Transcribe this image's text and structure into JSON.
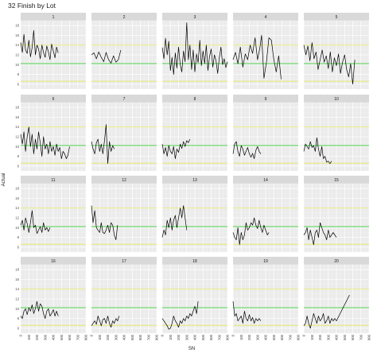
{
  "chart_data": {
    "type": "line",
    "title": "32 Finish by Lot",
    "xlabel": "SN",
    "ylabel": "Actual",
    "grid": true,
    "legend": "none",
    "layout": "facet 4 rows x 5 columns",
    "facets": [
      "1",
      "2",
      "3",
      "4",
      "5",
      "6",
      "7",
      "8",
      "9",
      "10",
      "11",
      "12",
      "13",
      "14",
      "15",
      "16",
      "17",
      "18",
      "19",
      "20"
    ],
    "xlim": [
      0,
      800
    ],
    "ylim": [
      5,
      19
    ],
    "x_ticks": [
      0,
      100,
      200,
      300,
      400,
      500,
      600,
      700,
      800
    ],
    "x_tick_labels": [
      "0",
      "100",
      "200",
      "300",
      "400",
      "500",
      "600",
      "700",
      "800"
    ],
    "y_ticks": [
      6,
      8,
      10,
      12,
      14,
      16,
      18
    ],
    "y_tick_labels": [
      "6",
      "8",
      "10",
      "12",
      "14",
      "16",
      "18"
    ],
    "reference_lines": [
      {
        "y": 14,
        "color": "#e6ea5c"
      },
      {
        "y": 10.2,
        "color": "#33cc33"
      },
      {
        "y": 6.6,
        "color": "#e6ea5c"
      }
    ],
    "line_color": "#000000",
    "series": [
      {
        "x": [
          0,
          20,
          40,
          60,
          80,
          100,
          120,
          140,
          160,
          180,
          200,
          220,
          240,
          260,
          280,
          300,
          320,
          340,
          360,
          380,
          400,
          420,
          440,
          460
        ],
        "values": [
          14.5,
          12.5,
          16.2,
          13.0,
          12.3,
          15.0,
          11.6,
          13.5,
          17.0,
          12.0,
          14.0,
          13.2,
          11.2,
          14.0,
          12.5,
          11.5,
          13.8,
          12.6,
          11.0,
          14.2,
          12.8,
          11.4,
          13.6,
          12.4
        ]
      },
      {
        "x": [
          0,
          30,
          60,
          90,
          120,
          150,
          180,
          210,
          240,
          270,
          300,
          330,
          360
        ],
        "values": [
          12.0,
          12.4,
          11.2,
          12.6,
          11.5,
          10.6,
          12.5,
          11.0,
          10.3,
          11.8,
          10.5,
          11.0,
          13.0
        ]
      },
      {
        "x": [
          0,
          20,
          40,
          60,
          80,
          100,
          120,
          140,
          160,
          180,
          200,
          220,
          240,
          260,
          280,
          300,
          320,
          340,
          360,
          380,
          400,
          420,
          440,
          460,
          480,
          500,
          520,
          540,
          560,
          580,
          600,
          620,
          640,
          660,
          680,
          700,
          720,
          740,
          760,
          780,
          800
        ],
        "values": [
          13.5,
          11.2,
          15.4,
          12.0,
          14.8,
          8.8,
          11.5,
          8.0,
          12.4,
          9.3,
          13.6,
          10.0,
          8.5,
          12.8,
          10.6,
          18.6,
          11.0,
          14.0,
          9.0,
          13.0,
          8.5,
          12.2,
          10.4,
          15.0,
          9.8,
          12.8,
          10.2,
          14.0,
          8.8,
          11.6,
          13.2,
          9.5,
          12.0,
          10.8,
          8.2,
          11.5,
          13.6,
          10.0,
          11.2,
          9.4,
          10.6
        ]
      },
      {
        "x": [
          0,
          30,
          60,
          90,
          120,
          150,
          180,
          210,
          240,
          270,
          300,
          330,
          350,
          380,
          410,
          440,
          470,
          500,
          530,
          560,
          590
        ],
        "values": [
          11.0,
          12.5,
          10.2,
          13.6,
          9.5,
          12.2,
          11.0,
          14.0,
          12.3,
          15.5,
          11.0,
          13.5,
          16.0,
          7.2,
          10.5,
          15.5,
          15.0,
          11.0,
          8.5,
          11.8,
          7.0
        ]
      },
      {
        "x": [
          0,
          25,
          50,
          75,
          100,
          125,
          150,
          175,
          200,
          225,
          250,
          275,
          300,
          325,
          350,
          375,
          400,
          425,
          450,
          475,
          500,
          525,
          550,
          575,
          600,
          625
        ],
        "values": [
          14.0,
          12.0,
          13.8,
          10.8,
          14.5,
          11.2,
          12.6,
          9.0,
          11.0,
          13.0,
          10.5,
          11.8,
          9.2,
          12.6,
          8.5,
          11.4,
          9.8,
          12.2,
          8.2,
          10.5,
          12.0,
          9.0,
          7.5,
          10.2,
          6.0,
          11.0
        ]
      },
      {
        "x": [
          0,
          20,
          40,
          60,
          80,
          100,
          120,
          140,
          160,
          180,
          200,
          220,
          240,
          260,
          280,
          300,
          320,
          340,
          360,
          380,
          400,
          420,
          440,
          460,
          480,
          500,
          520,
          540,
          560,
          580,
          600
        ],
        "values": [
          12.5,
          10.5,
          13.0,
          9.0,
          12.0,
          14.0,
          10.0,
          12.5,
          8.5,
          11.5,
          9.5,
          13.0,
          10.8,
          8.0,
          12.0,
          9.5,
          10.5,
          8.5,
          11.0,
          9.0,
          10.0,
          8.2,
          10.5,
          9.0,
          9.8,
          7.5,
          9.0,
          8.5,
          7.5,
          8.2,
          10.0
        ]
      },
      {
        "x": [
          0,
          20,
          40,
          60,
          80,
          100,
          120,
          140,
          160,
          180,
          200,
          220,
          240,
          260,
          280
        ],
        "values": [
          11.0,
          9.5,
          8.5,
          10.8,
          11.5,
          9.0,
          10.5,
          8.5,
          11.2,
          14.5,
          6.5,
          11.0,
          9.0,
          10.2,
          9.5
        ]
      },
      {
        "x": [
          0,
          20,
          40,
          60,
          80,
          100,
          120,
          140,
          160,
          180,
          200,
          220,
          240,
          260,
          280,
          300,
          320,
          340
        ],
        "values": [
          10.5,
          8.5,
          9.8,
          8.0,
          10.2,
          9.0,
          8.5,
          10.0,
          7.5,
          9.5,
          8.8,
          10.5,
          9.6,
          11.0,
          10.0,
          11.2,
          10.8,
          11.5
        ]
      },
      {
        "x": [
          0,
          20,
          40,
          60,
          80,
          100,
          120,
          140,
          160,
          180,
          200,
          220,
          240,
          260,
          280,
          300,
          320,
          340
        ],
        "values": [
          8.5,
          10.5,
          11.0,
          9.0,
          8.0,
          10.2,
          9.5,
          8.2,
          9.0,
          9.8,
          8.5,
          7.8,
          8.6,
          7.5,
          9.2,
          10.0,
          9.0,
          8.5
        ]
      },
      {
        "x": [
          0,
          20,
          40,
          60,
          80,
          100,
          120,
          140,
          160,
          180,
          200,
          220,
          240,
          260,
          280,
          300,
          320,
          340
        ],
        "values": [
          9.0,
          10.5,
          10.0,
          9.5,
          11.0,
          9.8,
          10.2,
          9.0,
          11.8,
          9.5,
          8.0,
          10.0,
          7.5,
          8.0,
          6.8,
          7.0,
          6.5,
          7.0
        ]
      },
      {
        "x": [
          0,
          20,
          40,
          60,
          80,
          100,
          120,
          140,
          160,
          180,
          200,
          220,
          240,
          260,
          280,
          300,
          320,
          340,
          360
        ],
        "values": [
          10.5,
          11.5,
          9.5,
          12.0,
          10.8,
          9.0,
          11.0,
          13.5,
          10.0,
          10.5,
          8.8,
          9.5,
          10.2,
          9.0,
          11.0,
          9.5,
          10.0,
          9.2,
          10.0
        ]
      },
      {
        "x": [
          0,
          20,
          40,
          60,
          80,
          100,
          120,
          140,
          160,
          180,
          200,
          220,
          240,
          260,
          280,
          300,
          320
        ],
        "values": [
          14.5,
          11.0,
          13.5,
          10.0,
          9.5,
          9.0,
          11.0,
          9.0,
          8.8,
          9.5,
          10.5,
          9.0,
          11.0,
          10.5,
          8.5,
          7.5,
          10.5
        ]
      },
      {
        "x": [
          0,
          20,
          40,
          60,
          80,
          100,
          120,
          140,
          160,
          180,
          200,
          220,
          240,
          260,
          280,
          300
        ],
        "values": [
          8.0,
          9.5,
          8.5,
          11.5,
          10.0,
          12.0,
          9.5,
          11.5,
          12.5,
          10.0,
          12.0,
          14.0,
          12.0,
          14.5,
          12.0,
          9.5
        ]
      },
      {
        "x": [
          0,
          20,
          40,
          60,
          80,
          100,
          120,
          140,
          160,
          180,
          200,
          220,
          240,
          260,
          280,
          300,
          320,
          340,
          360,
          380,
          400,
          420,
          440
        ],
        "values": [
          9.0,
          8.0,
          7.5,
          10.0,
          6.5,
          9.0,
          7.5,
          8.5,
          11.0,
          9.5,
          10.0,
          11.0,
          10.5,
          12.0,
          10.5,
          9.8,
          11.5,
          10.0,
          9.0,
          10.5,
          9.5,
          8.5,
          9.0
        ]
      },
      {
        "x": [
          0,
          20,
          40,
          60,
          80,
          100,
          120,
          140,
          160,
          180,
          200,
          220,
          240,
          260,
          280,
          300,
          320,
          340,
          360,
          380,
          400
        ],
        "values": [
          8.5,
          9.0,
          10.0,
          7.5,
          9.5,
          8.0,
          6.5,
          9.0,
          9.5,
          8.0,
          11.0,
          10.0,
          9.0,
          8.5,
          7.5,
          9.5,
          8.0,
          8.5,
          9.0,
          8.5,
          8.0
        ]
      },
      {
        "x": [
          0,
          20,
          40,
          60,
          80,
          100,
          120,
          140,
          160,
          180,
          200,
          220,
          240,
          260,
          280,
          300,
          320,
          340,
          360,
          380,
          400,
          420,
          440,
          460
        ],
        "values": [
          8.5,
          8.0,
          9.5,
          10.0,
          8.8,
          10.2,
          9.5,
          10.8,
          9.0,
          10.0,
          11.5,
          9.5,
          11.0,
          10.5,
          9.0,
          8.0,
          9.5,
          10.0,
          8.5,
          9.0,
          9.8,
          8.5,
          9.5,
          8.5
        ]
      },
      {
        "x": [
          0,
          20,
          40,
          60,
          80,
          100,
          120,
          140,
          160,
          180,
          200,
          220,
          240,
          260,
          280,
          300,
          320,
          340
        ],
        "values": [
          6.5,
          7.0,
          7.5,
          6.8,
          8.5,
          7.5,
          6.5,
          7.8,
          8.0,
          7.0,
          8.5,
          7.0,
          6.2,
          7.5,
          7.0,
          8.0,
          7.5,
          8.5
        ]
      },
      {
        "x": [
          0,
          20,
          40,
          60,
          80,
          100,
          120,
          140,
          160,
          180,
          200,
          220,
          240,
          260,
          280,
          300,
          320,
          340,
          360,
          380,
          400,
          420,
          440
        ],
        "values": [
          8.0,
          7.5,
          7.0,
          6.5,
          5.8,
          6.0,
          7.0,
          8.5,
          7.5,
          7.0,
          6.2,
          7.5,
          7.0,
          8.0,
          7.5,
          8.5,
          8.0,
          9.0,
          8.5,
          9.5,
          10.5,
          9.0,
          11.5
        ]
      },
      {
        "x": [
          0,
          20,
          40,
          60,
          80,
          100,
          120,
          140,
          160,
          180,
          200,
          220,
          240,
          260,
          280,
          300,
          320,
          340
        ],
        "values": [
          11.5,
          8.5,
          9.0,
          7.5,
          8.0,
          8.5,
          7.0,
          9.5,
          8.0,
          7.5,
          8.8,
          7.5,
          8.2,
          7.0,
          8.0,
          7.5,
          8.0,
          7.5
        ]
      },
      {
        "x": [
          0,
          20,
          40,
          60,
          80,
          100,
          120,
          140,
          160,
          180,
          200,
          220,
          240,
          260,
          280,
          300,
          320,
          340,
          360,
          380,
          400,
          560
        ],
        "values": [
          6.5,
          7.0,
          8.5,
          7.0,
          6.0,
          7.5,
          9.0,
          8.0,
          7.0,
          8.5,
          7.5,
          8.0,
          9.0,
          7.0,
          7.5,
          8.5,
          7.0,
          8.0,
          7.5,
          8.0,
          7.5,
          12.8
        ]
      }
    ]
  }
}
